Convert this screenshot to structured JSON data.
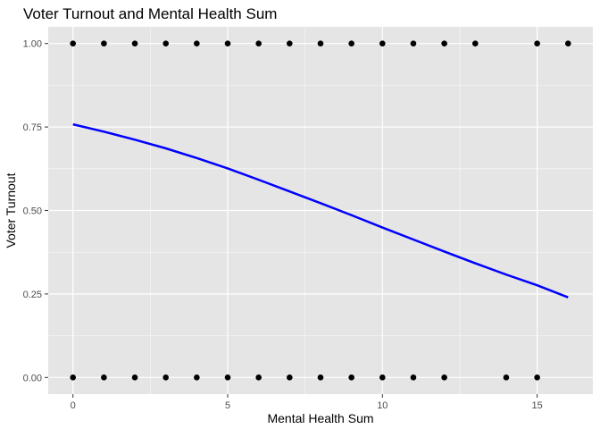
{
  "chart_data": {
    "type": "scatter",
    "title": "Voter Turnout and Mental Health Sum",
    "xlabel": "Mental Health Sum",
    "ylabel": "Voter Turnout",
    "xlim": [
      -0.8,
      16.8
    ],
    "ylim": [
      -0.05,
      1.05
    ],
    "x_ticks": [
      0,
      5,
      10,
      15
    ],
    "x_tick_labels": [
      "0",
      "5",
      "10",
      "15"
    ],
    "y_ticks": [
      0,
      0.25,
      0.5,
      0.75,
      1
    ],
    "y_tick_labels": [
      "0.00",
      "0.25",
      "0.50",
      "0.75",
      "1.00"
    ],
    "grid": true,
    "background": "#e5e5e5",
    "grid_major_color": "#ffffff",
    "point_color": "#000000",
    "points": [
      {
        "x": 0,
        "y": 1
      },
      {
        "x": 1,
        "y": 1
      },
      {
        "x": 2,
        "y": 1
      },
      {
        "x": 3,
        "y": 1
      },
      {
        "x": 4,
        "y": 1
      },
      {
        "x": 5,
        "y": 1
      },
      {
        "x": 6,
        "y": 1
      },
      {
        "x": 7,
        "y": 1
      },
      {
        "x": 8,
        "y": 1
      },
      {
        "x": 9,
        "y": 1
      },
      {
        "x": 10,
        "y": 1
      },
      {
        "x": 11,
        "y": 1
      },
      {
        "x": 12,
        "y": 1
      },
      {
        "x": 13,
        "y": 1
      },
      {
        "x": 15,
        "y": 1
      },
      {
        "x": 16,
        "y": 1
      },
      {
        "x": 0,
        "y": 0
      },
      {
        "x": 1,
        "y": 0
      },
      {
        "x": 2,
        "y": 0
      },
      {
        "x": 3,
        "y": 0
      },
      {
        "x": 4,
        "y": 0
      },
      {
        "x": 5,
        "y": 0
      },
      {
        "x": 6,
        "y": 0
      },
      {
        "x": 7,
        "y": 0
      },
      {
        "x": 8,
        "y": 0
      },
      {
        "x": 9,
        "y": 0
      },
      {
        "x": 10,
        "y": 0
      },
      {
        "x": 11,
        "y": 0
      },
      {
        "x": 12,
        "y": 0
      },
      {
        "x": 14,
        "y": 0
      },
      {
        "x": 15,
        "y": 0
      }
    ],
    "fit_line": {
      "color": "#0000ff",
      "x": [
        0,
        1,
        2,
        3,
        4,
        5,
        6,
        7,
        8,
        9,
        10,
        11,
        12,
        13,
        14,
        15,
        16
      ],
      "y": [
        0.758,
        0.736,
        0.712,
        0.686,
        0.657,
        0.626,
        0.592,
        0.557,
        0.522,
        0.486,
        0.449,
        0.413,
        0.377,
        0.342,
        0.308,
        0.276,
        0.24
      ]
    }
  }
}
